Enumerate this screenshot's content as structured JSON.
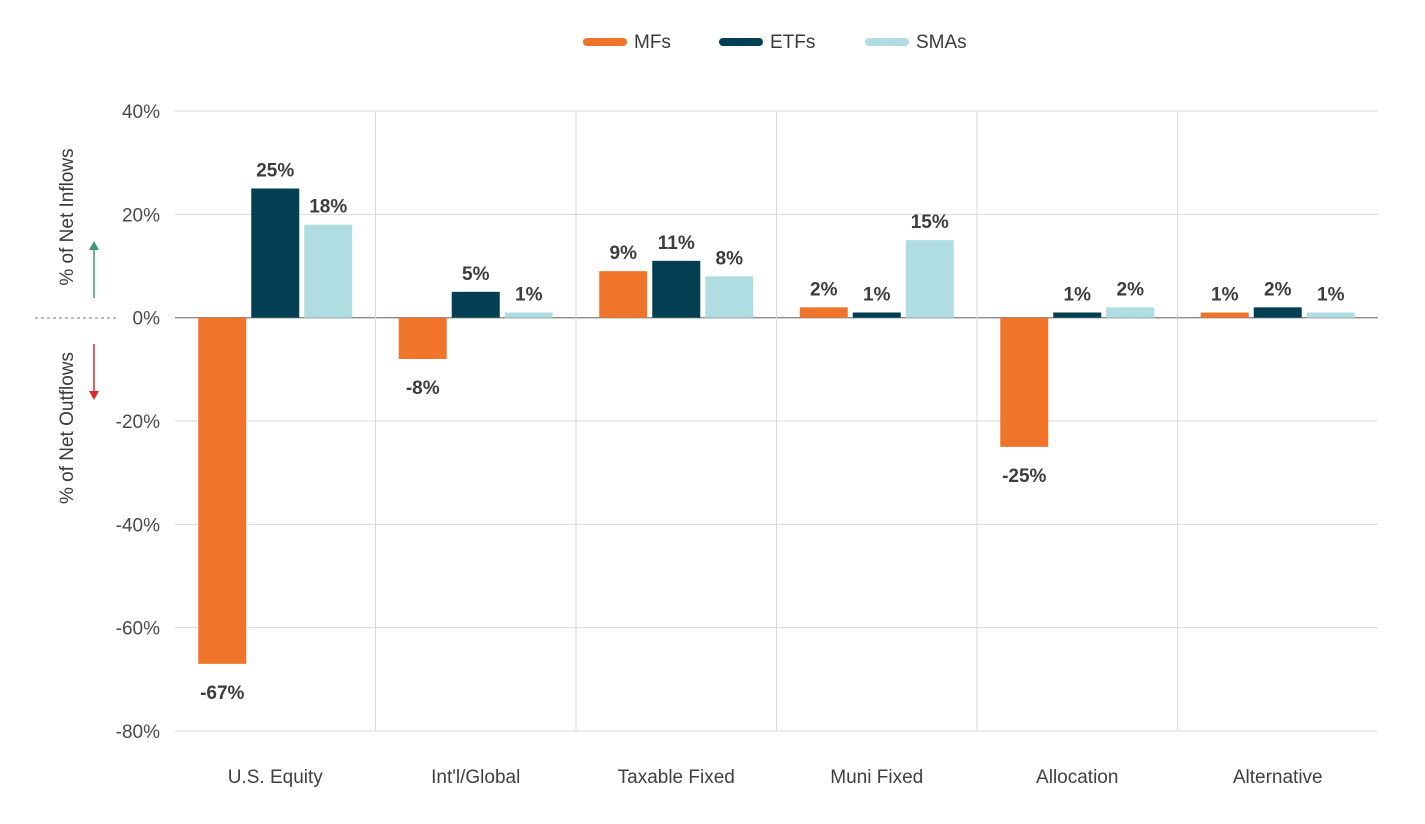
{
  "chart_data": {
    "type": "bar",
    "categories": [
      "U.S. Equity",
      "Int'l/Global",
      "Taxable Fixed",
      "Muni Fixed",
      "Allocation",
      "Alternative"
    ],
    "series": [
      {
        "name": "MFs",
        "values": [
          -67,
          -8,
          9,
          2,
          -25,
          1
        ],
        "labels": [
          "-67%",
          "-8%",
          "9%",
          "2%",
          "-25%",
          "1%"
        ]
      },
      {
        "name": "ETFs",
        "values": [
          25,
          5,
          11,
          1,
          1,
          2
        ],
        "labels": [
          "25%",
          "5%",
          "11%",
          "1%",
          "1%",
          "2%"
        ]
      },
      {
        "name": "SMAs",
        "values": [
          18,
          1,
          8,
          15,
          2,
          1
        ],
        "labels": [
          "18%",
          "1%",
          "8%",
          "15%",
          "2%",
          "1%"
        ]
      }
    ],
    "ylim": [
      -80,
      40
    ],
    "yticks": [
      40,
      20,
      0,
      -20,
      -40,
      -60,
      -80
    ],
    "ytick_labels": [
      "40%",
      "20%",
      "0%",
      "-20%",
      "-40%",
      "-60%",
      "-80%"
    ],
    "ylabel_upper": "% of Net Inflows",
    "ylabel_lower": "% of Net Outflows",
    "grid": true,
    "legend_position": "top-center",
    "colors": {
      "MFs": "#f0742a",
      "ETFs": "#033f52",
      "SMAs": "#afdde2",
      "up_arrow": "#3f9a69",
      "down_arrow": "#d9292f"
    }
  }
}
